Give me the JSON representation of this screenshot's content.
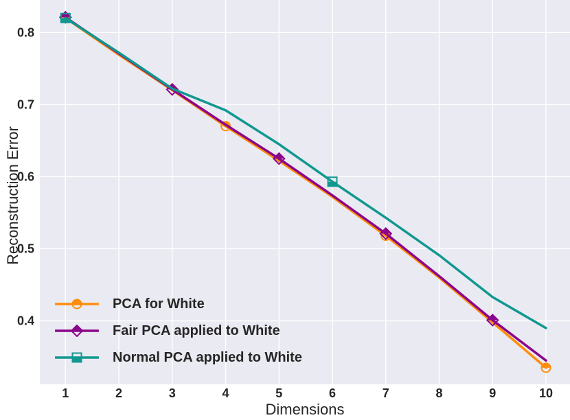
{
  "chart_data": {
    "type": "line",
    "title": "",
    "xlabel": "Dimensions",
    "ylabel": "Reconstruction Error",
    "x": [
      1,
      2,
      3,
      4,
      5,
      6,
      7,
      8,
      9,
      10
    ],
    "x_ticks": [
      1,
      2,
      3,
      4,
      5,
      6,
      7,
      8,
      9,
      10
    ],
    "y_ticks": [
      0.4,
      0.5,
      0.6,
      0.7,
      0.8
    ],
    "y_tick_labels": [
      "0.4",
      "0.5",
      "0.6",
      "0.7",
      "0.8"
    ],
    "xlim": [
      0.52,
      10.45
    ],
    "ylim": [
      0.312,
      0.845
    ],
    "grid": true,
    "legend_position": "lower-left",
    "colors": {
      "plot_background": "#EAEAF2",
      "grid": "#FFFFFF",
      "text": "#262626"
    },
    "series": [
      {
        "name": "PCA for White",
        "color": "#FF8D0A",
        "marker": "circle",
        "marker_at": [
          1,
          4,
          7,
          10
        ],
        "values": [
          0.82,
          0.769,
          0.72,
          0.67,
          0.622,
          0.572,
          0.518,
          0.46,
          0.398,
          0.335
        ]
      },
      {
        "name": "Fair PCA applied to White",
        "color": "#8B068B",
        "marker": "diamond",
        "marker_at": [
          1,
          3,
          5,
          7,
          9
        ],
        "values": [
          0.821,
          0.771,
          0.721,
          0.672,
          0.625,
          0.574,
          0.521,
          0.462,
          0.401,
          0.345
        ]
      },
      {
        "name": "Normal PCA applied to White",
        "color": "#109890",
        "marker": "square",
        "marker_at": [
          1,
          6
        ],
        "values": [
          0.82,
          0.772,
          0.722,
          0.692,
          0.645,
          0.593,
          0.543,
          0.491,
          0.433,
          0.39
        ]
      }
    ]
  }
}
